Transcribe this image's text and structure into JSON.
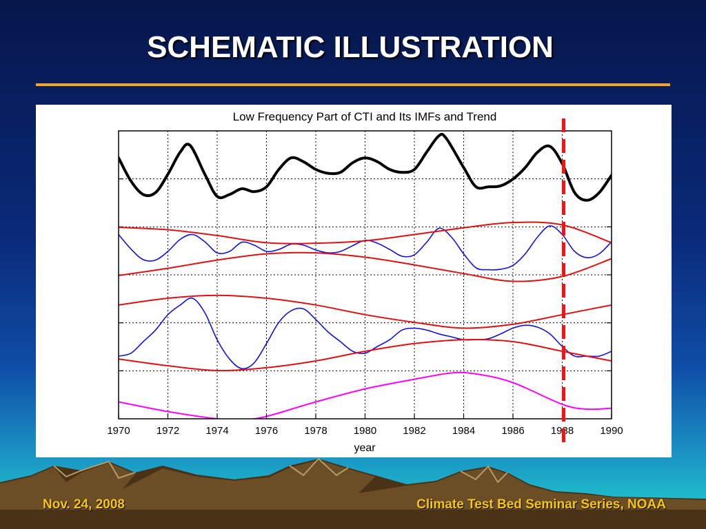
{
  "slide": {
    "title": "SCHEMATIC ILLUSTRATION",
    "footer_left": "Nov. 24, 2008",
    "footer_right": "Climate Test Bed Seminar Series, NOAA"
  },
  "colors": {
    "title_rule": "#f5a623",
    "footer_text": "#f5c518",
    "cti": "#000000",
    "imf": "#1010e0",
    "envelope": "#e01010",
    "trend": "#ff00ff",
    "marker": "#ff1010"
  },
  "chart_data": {
    "type": "line",
    "title": "Low Frequency Part of CTI and Its IMFs and Trend",
    "xlabel": "year",
    "ylabel": "",
    "xlim": [
      1970,
      1990
    ],
    "xticks": [
      1970,
      1972,
      1974,
      1976,
      1978,
      1980,
      1982,
      1984,
      1986,
      1988,
      1990
    ],
    "y_axis_labels_shown": false,
    "grid": true,
    "vertical_marker_year": 1988,
    "series": [
      {
        "role": "cti",
        "x": [
          1970,
          1970.5,
          1971,
          1971.5,
          1972,
          1972.5,
          1972.9,
          1973.5,
          1974,
          1974.5,
          1975,
          1975.5,
          1976,
          1976.5,
          1977,
          1977.5,
          1978,
          1978.5,
          1979,
          1979.5,
          1980,
          1980.5,
          1981,
          1981.5,
          1982,
          1982.5,
          1983,
          1983.3,
          1984,
          1984.5,
          1985,
          1985.5,
          1986,
          1986.5,
          1987,
          1987.5,
          1988,
          1988.5,
          1989,
          1989.5,
          1990
        ],
        "y": [
          0.72,
          0.48,
          0.34,
          0.36,
          0.55,
          0.78,
          0.85,
          0.55,
          0.32,
          0.34,
          0.4,
          0.37,
          0.42,
          0.6,
          0.72,
          0.68,
          0.6,
          0.56,
          0.57,
          0.67,
          0.72,
          0.68,
          0.6,
          0.57,
          0.6,
          0.78,
          0.95,
          0.92,
          0.62,
          0.42,
          0.42,
          0.43,
          0.5,
          0.62,
          0.78,
          0.84,
          0.66,
          0.36,
          0.28,
          0.36,
          0.54
        ]
      },
      {
        "role": "imf1",
        "x": [
          1970,
          1970.5,
          1971,
          1971.5,
          1972,
          1972.5,
          1973,
          1973.5,
          1974,
          1974.5,
          1975,
          1975.5,
          1976,
          1976.5,
          1977,
          1977.5,
          1978,
          1978.5,
          1979,
          1979.5,
          1980,
          1980.5,
          1981,
          1981.5,
          1982,
          1982.5,
          1983,
          1983.5,
          1984,
          1984.5,
          1985,
          1985.5,
          1986,
          1986.5,
          1987,
          1987.5,
          1988,
          1988.5,
          1989,
          1989.5,
          1990
        ],
        "y": [
          0.85,
          0.55,
          0.33,
          0.32,
          0.5,
          0.75,
          0.85,
          0.7,
          0.47,
          0.5,
          0.69,
          0.63,
          0.5,
          0.54,
          0.65,
          0.63,
          0.53,
          0.47,
          0.5,
          0.62,
          0.73,
          0.67,
          0.54,
          0.4,
          0.43,
          0.69,
          0.98,
          0.8,
          0.45,
          0.16,
          0.12,
          0.13,
          0.21,
          0.45,
          0.8,
          1.03,
          0.85,
          0.5,
          0.37,
          0.45,
          0.7
        ]
      },
      {
        "role": "imf1-upper-envelope",
        "x": [
          1970,
          1972,
          1974,
          1976,
          1978,
          1980,
          1982,
          1984,
          1986,
          1988,
          1990
        ],
        "y": [
          1.0,
          0.95,
          0.83,
          0.68,
          0.67,
          0.72,
          0.85,
          0.99,
          1.1,
          1.05,
          0.68
        ]
      },
      {
        "role": "imf1-lower-envelope",
        "x": [
          1970,
          1972,
          1974,
          1976,
          1978,
          1980,
          1982,
          1984,
          1986,
          1988,
          1990
        ],
        "y": [
          0.0,
          0.15,
          0.32,
          0.45,
          0.47,
          0.38,
          0.22,
          0.04,
          -0.12,
          -0.02,
          0.35
        ]
      },
      {
        "role": "imf2",
        "x": [
          1970,
          1970.5,
          1971,
          1971.5,
          1972,
          1972.5,
          1973,
          1973.5,
          1974,
          1974.5,
          1975,
          1975.5,
          1976,
          1976.5,
          1977,
          1977.5,
          1978,
          1978.5,
          1979,
          1979.5,
          1980,
          1980.5,
          1981,
          1981.5,
          1982,
          1982.5,
          1983,
          1983.5,
          1984,
          1984.5,
          1985,
          1985.5,
          1986,
          1986.5,
          1987,
          1987.5,
          1988,
          1988.5,
          1989,
          1989.5,
          1990
        ],
        "y": [
          -0.05,
          -0.02,
          0.1,
          0.22,
          0.38,
          0.48,
          0.55,
          0.4,
          0.12,
          -0.08,
          -0.18,
          -0.12,
          0.08,
          0.3,
          0.42,
          0.44,
          0.33,
          0.2,
          0.1,
          0.0,
          -0.02,
          0.05,
          0.12,
          0.22,
          0.24,
          0.22,
          0.18,
          0.15,
          0.12,
          0.12,
          0.13,
          0.18,
          0.24,
          0.27,
          0.25,
          0.18,
          0.05,
          -0.05,
          -0.05,
          -0.05,
          0.0
        ]
      },
      {
        "role": "imf2-upper-envelope",
        "x": [
          1970,
          1972,
          1974,
          1976,
          1978,
          1980,
          1982,
          1984,
          1986,
          1988,
          1990
        ],
        "y": [
          0.48,
          0.55,
          0.58,
          0.55,
          0.48,
          0.38,
          0.3,
          0.24,
          0.28,
          0.38,
          0.48
        ]
      },
      {
        "role": "imf2-lower-envelope",
        "x": [
          1970,
          1972,
          1974,
          1976,
          1978,
          1980,
          1982,
          1984,
          1986,
          1988,
          1990
        ],
        "y": [
          -0.08,
          -0.15,
          -0.2,
          -0.17,
          -0.1,
          0.0,
          0.08,
          0.12,
          0.1,
          0.0,
          -0.1
        ]
      },
      {
        "role": "trend",
        "x": [
          1970,
          1972,
          1974,
          1975,
          1976,
          1978,
          1980,
          1982,
          1983.5,
          1984.5,
          1986,
          1988,
          1989,
          1990
        ],
        "y": [
          0.35,
          0.15,
          0.0,
          -0.02,
          0.05,
          0.35,
          0.62,
          0.82,
          0.95,
          0.93,
          0.75,
          0.3,
          0.2,
          0.22
        ]
      }
    ]
  }
}
